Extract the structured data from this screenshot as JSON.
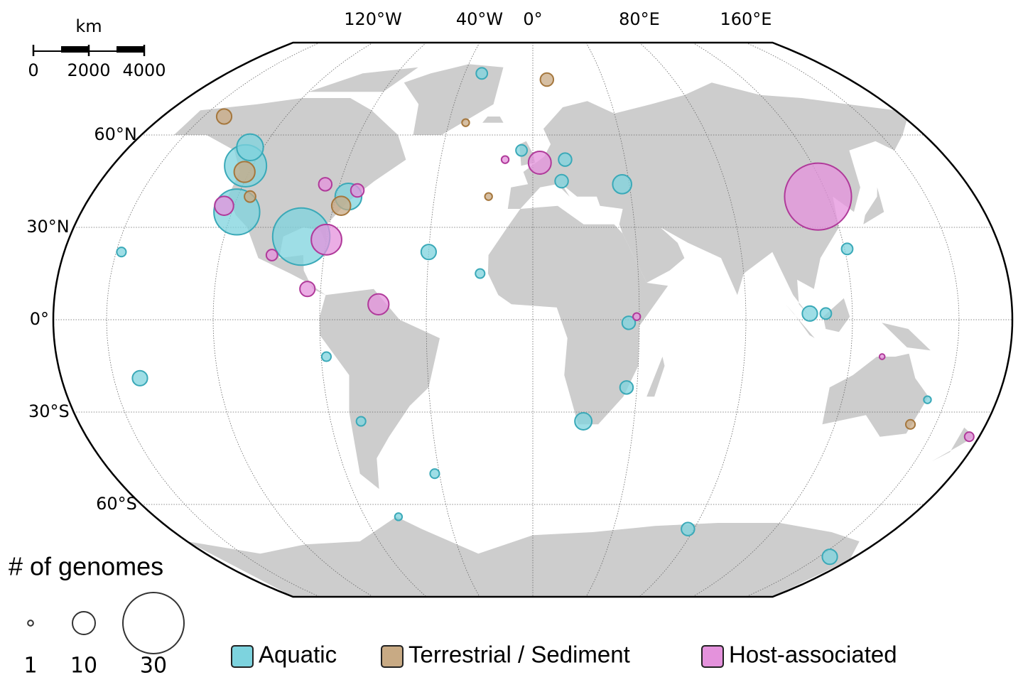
{
  "map": {
    "scale_bar": {
      "unit": "km",
      "ticks": [
        0,
        2000,
        4000
      ]
    },
    "lon_labels": [
      {
        "value": -120,
        "label": "120°W"
      },
      {
        "value": -40,
        "label": "40°W"
      },
      {
        "value": 0,
        "label": "0°"
      },
      {
        "value": 80,
        "label": "80°E"
      },
      {
        "value": 160,
        "label": "160°E"
      }
    ],
    "lat_labels": [
      {
        "value": 60,
        "label": "60°N"
      },
      {
        "value": 30,
        "label": "30°N"
      },
      {
        "value": 0,
        "label": "0°"
      },
      {
        "value": -30,
        "label": "30°S"
      },
      {
        "value": -60,
        "label": "60°S"
      }
    ],
    "meridians": [
      -160,
      -120,
      -80,
      -40,
      0,
      40,
      80,
      120,
      160
    ],
    "parallels": [
      -60,
      -30,
      0,
      30,
      60
    ],
    "size_legend": {
      "title": "# of genomes",
      "sizes": [
        1,
        10,
        30
      ]
    },
    "categories": [
      {
        "name": "Aquatic",
        "color": "#7dd3de",
        "stroke": "#3aa9b8"
      },
      {
        "name": "Terrestrial / Sediment",
        "color": "#c8aa84",
        "stroke": "#a5773d"
      },
      {
        "name": "Host-associated",
        "color": "#e492dc",
        "stroke": "#b03a9a"
      }
    ],
    "points": [
      {
        "lon": -123,
        "lat": 50,
        "n": 20,
        "cat": 0
      },
      {
        "lon": -126,
        "lat": 56,
        "n": 12,
        "cat": 0
      },
      {
        "lon": -118,
        "lat": 35,
        "n": 22,
        "cat": 0
      },
      {
        "lon": -90,
        "lat": 27,
        "n": 28,
        "cat": 0
      },
      {
        "lon": -80,
        "lat": 26,
        "n": 14,
        "cat": 2
      },
      {
        "lon": -75,
        "lat": 40,
        "n": 12,
        "cat": 0
      },
      {
        "lon": -77,
        "lat": 37,
        "n": 8,
        "cat": 1
      },
      {
        "lon": -86,
        "lat": 44,
        "n": 5,
        "cat": 2
      },
      {
        "lon": -72,
        "lat": 42,
        "n": 5,
        "cat": 2
      },
      {
        "lon": -150,
        "lat": 66,
        "n": 6,
        "cat": 1
      },
      {
        "lon": -122,
        "lat": 48,
        "n": 9,
        "cat": 1
      },
      {
        "lon": -124,
        "lat": 37,
        "n": 8,
        "cat": 2
      },
      {
        "lon": -115,
        "lat": 40,
        "n": 4,
        "cat": 1
      },
      {
        "lon": -100,
        "lat": 21,
        "n": 4,
        "cat": 2
      },
      {
        "lon": -85,
        "lat": 10,
        "n": 6,
        "cat": 2
      },
      {
        "lon": -58,
        "lat": 5,
        "n": 9,
        "cat": 2
      },
      {
        "lon": -40,
        "lat": 22,
        "n": 6,
        "cat": 0
      },
      {
        "lon": -30,
        "lat": 80,
        "n": 4,
        "cat": 0
      },
      {
        "lon": -158,
        "lat": 22,
        "n": 3,
        "cat": 0
      },
      {
        "lon": -150,
        "lat": -19,
        "n": 6,
        "cat": 0
      },
      {
        "lon": -78,
        "lat": -12,
        "n": 3,
        "cat": 0
      },
      {
        "lon": -68,
        "lat": -33,
        "n": 3,
        "cat": 0
      },
      {
        "lon": -5,
        "lat": 55,
        "n": 4,
        "cat": 0
      },
      {
        "lon": 3,
        "lat": 51,
        "n": 10,
        "cat": 2
      },
      {
        "lon": 8,
        "lat": 78,
        "n": 5,
        "cat": 1
      },
      {
        "lon": 12,
        "lat": 45,
        "n": 5,
        "cat": 0
      },
      {
        "lon": 14,
        "lat": 52,
        "n": 5,
        "cat": 0
      },
      {
        "lon": 37,
        "lat": 44,
        "n": 8,
        "cat": 0
      },
      {
        "lon": 36,
        "lat": -1,
        "n": 5,
        "cat": 0
      },
      {
        "lon": 39,
        "lat": 1,
        "n": 2,
        "cat": 2
      },
      {
        "lon": 36,
        "lat": -22,
        "n": 5,
        "cat": 0
      },
      {
        "lon": 20,
        "lat": -33,
        "n": 7,
        "cat": 0
      },
      {
        "lon": -20,
        "lat": 15,
        "n": 3,
        "cat": 0
      },
      {
        "lon": -12,
        "lat": 52,
        "n": 2,
        "cat": 2
      },
      {
        "lon": 116,
        "lat": 40,
        "n": 33,
        "cat": 2
      },
      {
        "lon": 104,
        "lat": 2,
        "n": 6,
        "cat": 0
      },
      {
        "lon": 110,
        "lat": 2,
        "n": 4,
        "cat": 0
      },
      {
        "lon": 121,
        "lat": 23,
        "n": 4,
        "cat": 0
      },
      {
        "lon": 153,
        "lat": -26,
        "n": 2,
        "cat": 0
      },
      {
        "lon": 150,
        "lat": -34,
        "n": 3,
        "cat": 1
      },
      {
        "lon": 176,
        "lat": -38,
        "n": 3,
        "cat": 2
      },
      {
        "lon": 132,
        "lat": -12,
        "n": 1,
        "cat": 2
      },
      {
        "lon": 77,
        "lat": -68,
        "n": 5,
        "cat": 0
      },
      {
        "lon": 166,
        "lat": -77,
        "n": 6,
        "cat": 0
      },
      {
        "lon": -64,
        "lat": -64,
        "n": 2,
        "cat": 0
      },
      {
        "lon": -42,
        "lat": -50,
        "n": 3,
        "cat": 0
      },
      {
        "lon": -32,
        "lat": 64,
        "n": 2,
        "cat": 1
      },
      {
        "lon": -18,
        "lat": 40,
        "n": 2,
        "cat": 1
      }
    ]
  }
}
